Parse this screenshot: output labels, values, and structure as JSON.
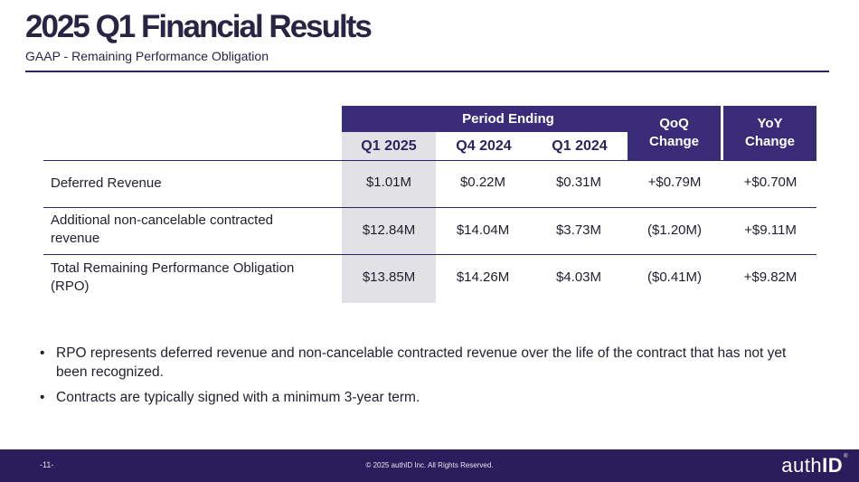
{
  "slide": {
    "title": "2025 Q1 Financial Results",
    "subtitle": "GAAP - Remaining Performance Obligation"
  },
  "table": {
    "group_header": "Period Ending",
    "period_columns": [
      "Q1 2025",
      "Q4 2024",
      "Q1 2024"
    ],
    "change_columns": [
      "QoQ\nChange",
      "YoY\nChange"
    ],
    "rows": [
      {
        "label": "Deferred Revenue",
        "values": [
          "$1.01M",
          "$0.22M",
          "$0.31M",
          "+$0.79M",
          "+$0.70M"
        ]
      },
      {
        "label": "Additional non-cancelable contracted revenue",
        "values": [
          "$12.84M",
          "$14.04M",
          "$3.73M",
          "($1.20M)",
          "+$9.11M"
        ]
      },
      {
        "label": "Total Remaining Performance Obligation (RPO)",
        "values": [
          "$13.85M",
          "$14.26M",
          "$4.03M",
          "($0.41M)",
          "+$9.82M"
        ]
      }
    ]
  },
  "bullets": [
    "RPO represents deferred revenue and non-cancelable contracted revenue over the life of the contract that has not yet been recognized.",
    "Contracts are typically signed with a minimum 3-year term."
  ],
  "bullet_symbol": "•",
  "footer": {
    "page_number": "-11-",
    "copyright": "© 2025 authID Inc. All Rights Reserved.",
    "logo_regular": "auth",
    "logo_bold": "ID",
    "logo_mark": "®"
  },
  "colors": {
    "brand_purple": "#3a2c78",
    "footer_purple": "#2b1d5c",
    "shade_gray": "#e2e2e6"
  }
}
